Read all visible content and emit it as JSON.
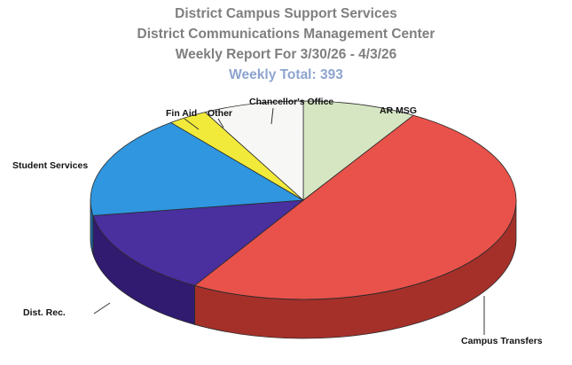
{
  "chart_data": {
    "type": "pie",
    "title": "District Campus Support Services",
    "subtitle": "District Communications Management Center",
    "report_period": "Weekly Report For 3/30/26 - 4/3/26",
    "total_label": "Weekly Total: 393",
    "three_d": true,
    "categories": [
      "AR MSG",
      "Campus Transfers",
      "Dist. Rec.",
      "Student Services",
      "Fin Aid",
      "Other",
      "Chancellor's Office"
    ],
    "values": [
      34,
      196,
      55,
      66,
      0,
      12,
      30
    ],
    "colors": [
      "#d6e6c3",
      "#e8524a",
      "#4a2f9f",
      "#2f96df",
      "#f2ea3a",
      "#f2ea3a",
      "#f7f7f5"
    ],
    "side_colors": [
      "#a9bb97",
      "#a5302a",
      "#301b70",
      "#1d6aa3",
      "#b5ae20",
      "#b5ae20",
      "#c3c3c0"
    ]
  }
}
